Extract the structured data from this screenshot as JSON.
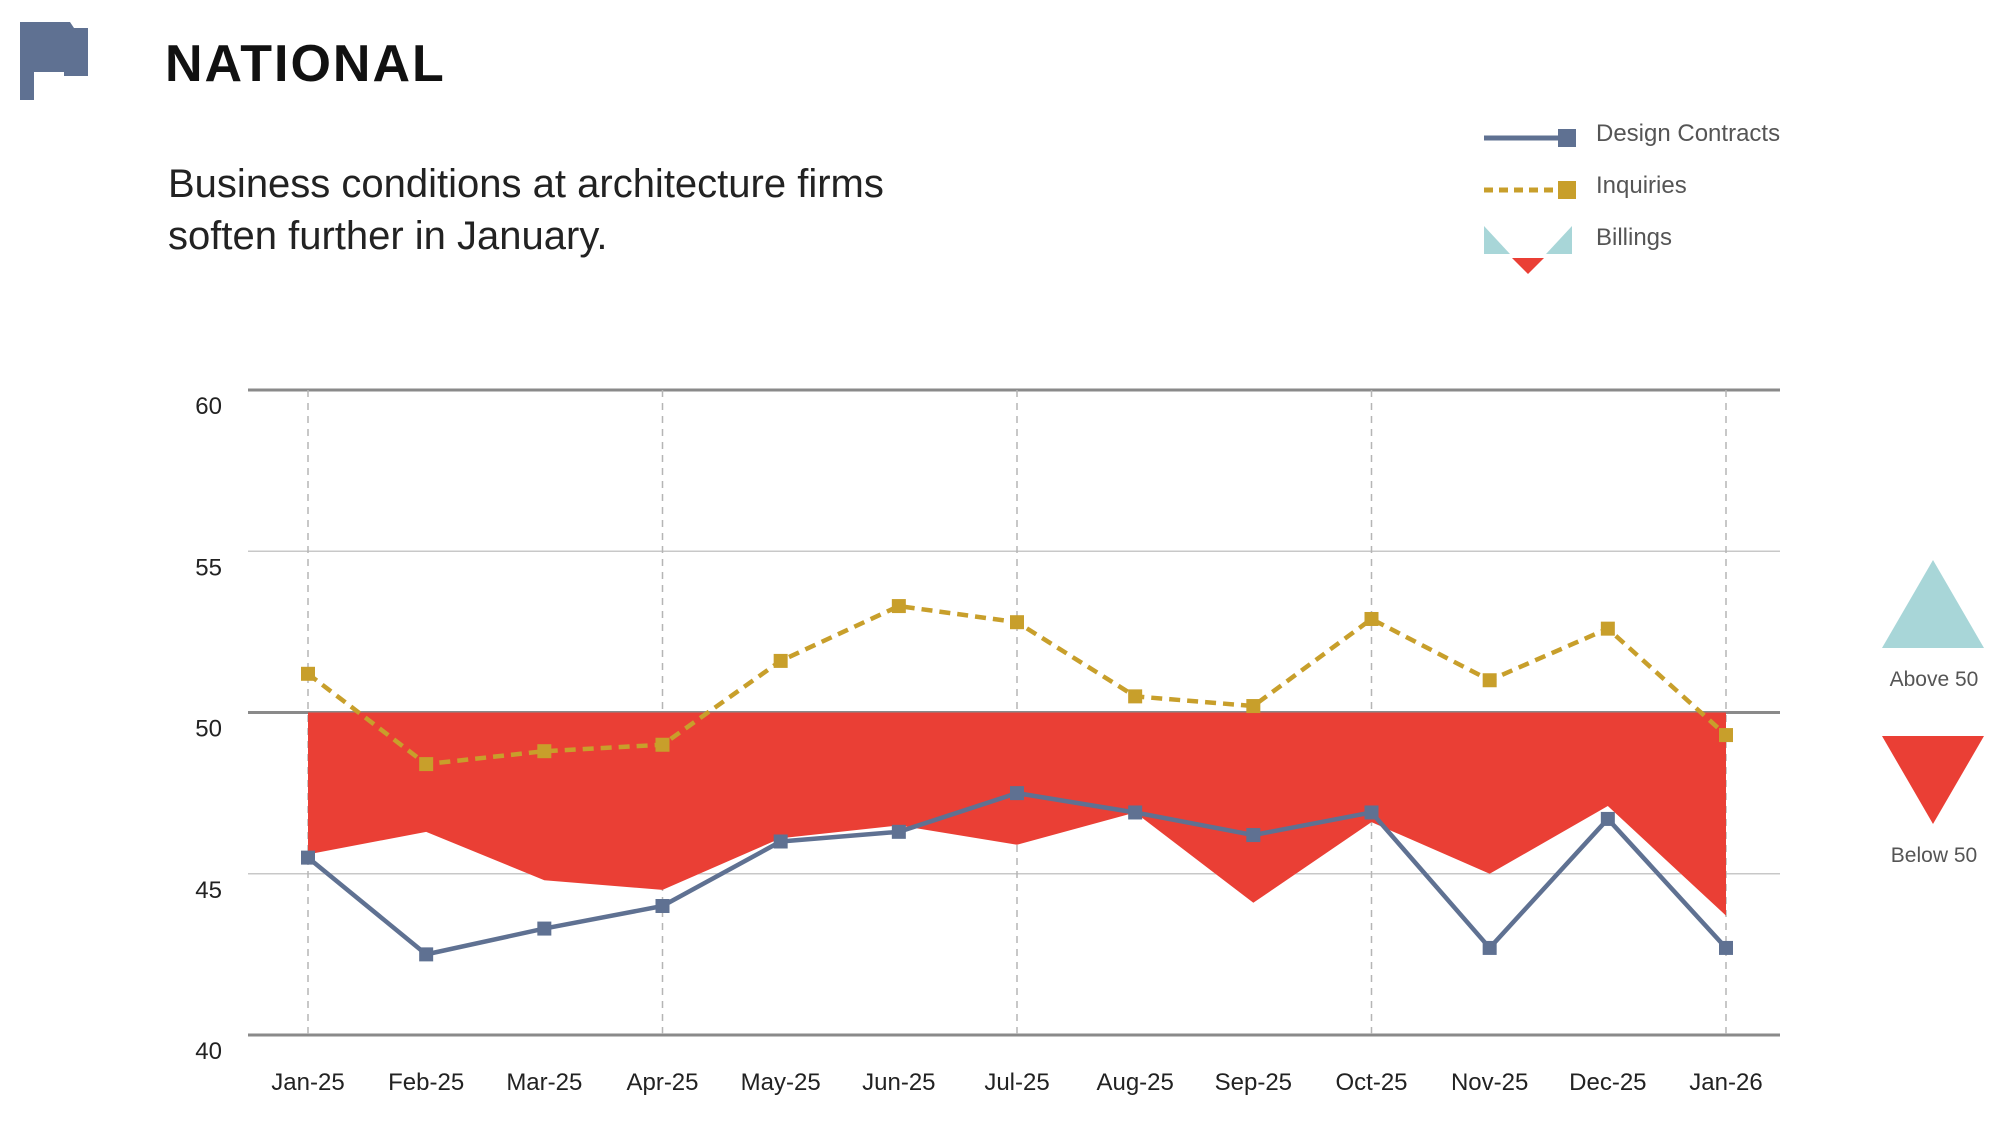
{
  "header": {
    "title": "NATIONAL",
    "subtitle": "Business conditions at architecture firms soften further in January."
  },
  "legend": {
    "design_contracts": "Design Contracts",
    "inquiries": "Inquiries",
    "billings": "Billings"
  },
  "side_legend": {
    "above": "Above 50",
    "below": "Below 50"
  },
  "colors": {
    "design_contracts": "#5f7192",
    "inquiries": "#c89f2b",
    "billings_below": "#ea3f35",
    "billings_above": "#a8d6d8",
    "flag": "#5f7192"
  },
  "chart_data": {
    "type": "line",
    "title": "Business conditions at architecture firms soften further in January.",
    "xlabel": "",
    "ylabel": "",
    "ylim": [
      40,
      60
    ],
    "yticks": [
      40,
      45,
      50,
      55,
      60
    ],
    "baseline": 50,
    "categories": [
      "Jan-25",
      "Feb-25",
      "Mar-25",
      "Apr-25",
      "May-25",
      "Jun-25",
      "Jul-25",
      "Aug-25",
      "Sep-25",
      "Oct-25",
      "Nov-25",
      "Dec-25",
      "Jan-26"
    ],
    "series": [
      {
        "name": "Design Contracts",
        "style": "solid-line",
        "values": [
          45.5,
          42.5,
          43.3,
          44.0,
          46.0,
          46.3,
          47.5,
          46.9,
          46.2,
          46.9,
          42.7,
          46.7,
          42.7
        ]
      },
      {
        "name": "Inquiries",
        "style": "dashed-line",
        "values": [
          51.2,
          48.4,
          48.8,
          49.0,
          51.6,
          53.3,
          52.8,
          50.5,
          50.2,
          52.9,
          51.0,
          52.6,
          49.3
        ]
      },
      {
        "name": "Billings",
        "style": "area-from-50",
        "values": [
          45.6,
          46.3,
          44.8,
          44.5,
          46.1,
          46.5,
          45.9,
          46.9,
          44.1,
          46.6,
          45.0,
          47.1,
          43.7
        ]
      }
    ]
  }
}
